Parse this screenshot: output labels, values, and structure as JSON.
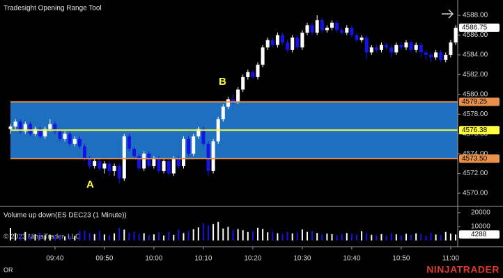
{
  "chart_data": {
    "type": "candlestick",
    "title": "Tradesight Opening Range Tool",
    "categories": [
      null,
      null,
      null,
      null,
      null,
      null,
      null,
      null,
      null,
      "09:40",
      null,
      null,
      null,
      null,
      null,
      null,
      null,
      null,
      null,
      "09:50",
      null,
      null,
      null,
      null,
      null,
      null,
      null,
      null,
      null,
      "10:00",
      null,
      null,
      null,
      null,
      null,
      null,
      null,
      null,
      null,
      "10:10",
      null,
      null,
      null,
      null,
      null,
      null,
      null,
      null,
      null,
      "10:20",
      null,
      null,
      null,
      null,
      null,
      null,
      null,
      null,
      null,
      "10:30",
      null,
      null,
      null,
      null,
      null,
      null,
      null,
      null,
      null,
      "10:40",
      null,
      null,
      null,
      null,
      null,
      null,
      null,
      null,
      null,
      "10:50",
      null,
      null,
      null,
      null,
      null,
      null,
      null,
      null,
      null,
      "11:00",
      null
    ],
    "ohlc": [
      [
        4576.5,
        4577,
        4576,
        4576.75
      ],
      [
        4576.75,
        4577.5,
        4576.5,
        4577.25
      ],
      [
        4577.25,
        4577.5,
        4576,
        4576.25
      ],
      [
        4576.25,
        4577.25,
        4576,
        4577
      ],
      [
        4577,
        4577.25,
        4575.75,
        4576
      ],
      [
        4576,
        4576.75,
        4575.75,
        4576.5
      ],
      [
        4576.5,
        4576.75,
        4575.5,
        4575.75
      ],
      [
        4575.75,
        4576.75,
        4575.5,
        4576.5
      ],
      [
        4576.5,
        4577.5,
        4576.25,
        4577
      ],
      [
        4577,
        4577.25,
        4576,
        4576.25
      ],
      [
        4576.25,
        4576.5,
        4575.25,
        4575.5
      ],
      [
        4575.5,
        4576.25,
        4575.25,
        4576
      ],
      [
        4576,
        4576.25,
        4574.75,
        4575
      ],
      [
        4575,
        4575.75,
        4574.75,
        4575.5
      ],
      [
        4575.5,
        4575.75,
        4574.5,
        4574.75
      ],
      [
        4574.75,
        4575,
        4573.25,
        4573.5
      ],
      [
        4573.5,
        4573.75,
        4572.5,
        4572.75
      ],
      [
        4572.75,
        4573.5,
        4572.5,
        4573.25
      ],
      [
        4573.25,
        4573.5,
        4572.25,
        4572.5
      ],
      [
        4572.5,
        4573.25,
        4572,
        4573
      ],
      [
        4573,
        4573.25,
        4571.75,
        4572.25
      ],
      [
        4572.25,
        4573,
        4571.75,
        4572.75
      ],
      [
        4572.75,
        4573,
        4571,
        4571.5
      ],
      [
        4571.5,
        4576,
        4571.25,
        4575.75
      ],
      [
        4575.75,
        4576,
        4574.25,
        4574.5
      ],
      [
        4574.5,
        4574.75,
        4573.5,
        4573.75
      ],
      [
        4573.75,
        4574,
        4572.25,
        4572.5
      ],
      [
        4572.5,
        4574.25,
        4572.25,
        4574
      ],
      [
        4574,
        4574.25,
        4572.5,
        4572.75
      ],
      [
        4572.75,
        4573.75,
        4572.5,
        4573.5
      ],
      [
        4573.5,
        4573.75,
        4572,
        4572.25
      ],
      [
        4572.25,
        4573.5,
        4572,
        4573.25
      ],
      [
        4573.25,
        4573.5,
        4571.75,
        4572
      ],
      [
        4572,
        4573.75,
        4571.75,
        4573.5
      ],
      [
        4573.5,
        4573.75,
        4572.5,
        4572.75
      ],
      [
        4572.75,
        4575.75,
        4572.5,
        4575.5
      ],
      [
        4575.5,
        4575.75,
        4573.75,
        4574
      ],
      [
        4574,
        4576,
        4573.75,
        4575.75
      ],
      [
        4575.75,
        4576.75,
        4575.5,
        4576.5
      ],
      [
        4576.5,
        4576.75,
        4574.75,
        4575
      ],
      [
        4575,
        4575.25,
        4571.75,
        4572.25
      ],
      [
        4572.25,
        4575.5,
        4572,
        4575.25
      ],
      [
        4575.25,
        4577.75,
        4575,
        4577.5
      ],
      [
        4577.5,
        4579,
        4577.25,
        4578.75
      ],
      [
        4578.75,
        4579.75,
        4578.5,
        4579.5
      ],
      [
        4579.5,
        4580,
        4579,
        4579.25
      ],
      [
        4579.25,
        4580.75,
        4579,
        4580.5
      ],
      [
        4580.5,
        4582,
        4580.25,
        4581.75
      ],
      [
        4581.75,
        4582.5,
        4581.5,
        4582.25
      ],
      [
        4582.25,
        4582.5,
        4581.5,
        4581.75
      ],
      [
        4581.75,
        4583.25,
        4581.5,
        4583
      ],
      [
        4583,
        4585,
        4582.75,
        4584.75
      ],
      [
        4584.75,
        4585.75,
        4584.5,
        4585.5
      ],
      [
        4585.5,
        4585.75,
        4584.75,
        4585
      ],
      [
        4585,
        4586.25,
        4584.75,
        4586
      ],
      [
        4586,
        4586.25,
        4585,
        4585.25
      ],
      [
        4585.25,
        4585.5,
        4584.25,
        4584.5
      ],
      [
        4584.5,
        4586,
        4584.25,
        4585.75
      ],
      [
        4585.75,
        4586,
        4584.5,
        4584.75
      ],
      [
        4584.75,
        4586.5,
        4584.5,
        4586.25
      ],
      [
        4586.25,
        4587.25,
        4586,
        4587
      ],
      [
        4587,
        4587.25,
        4586,
        4586.25
      ],
      [
        4586.25,
        4588,
        4586,
        4587.5
      ],
      [
        4587.5,
        4587.75,
        4586.25,
        4586.5
      ],
      [
        4586.5,
        4587,
        4586.25,
        4586.75
      ],
      [
        4586.75,
        4587.5,
        4586.5,
        4587.25
      ],
      [
        4587.25,
        4587.5,
        4586.25,
        4586.5
      ],
      [
        4586.5,
        4586.75,
        4586,
        4586.25
      ],
      [
        4586.25,
        4587,
        4586,
        4586.75
      ],
      [
        4586.75,
        4587,
        4585.75,
        4586
      ],
      [
        4586,
        4586.25,
        4585.25,
        4585.5
      ],
      [
        4585.5,
        4586,
        4585.25,
        4585.75
      ],
      [
        4585.75,
        4586,
        4583.5,
        4584.25
      ],
      [
        4584.25,
        4585,
        4584,
        4584.75
      ],
      [
        4584.75,
        4585,
        4584.25,
        4584.5
      ],
      [
        4584.5,
        4585.25,
        4584.25,
        4585
      ],
      [
        4585,
        4585.25,
        4584.5,
        4584.75
      ],
      [
        4584.75,
        4585,
        4583.75,
        4584.25
      ],
      [
        4584.25,
        4585.25,
        4584,
        4585
      ],
      [
        4585,
        4585.25,
        4584.5,
        4584.75
      ],
      [
        4584.75,
        4585.5,
        4584.5,
        4585.25
      ],
      [
        4585.25,
        4585.5,
        4584.25,
        4584.5
      ],
      [
        4584.5,
        4585.25,
        4584.25,
        4585
      ],
      [
        4585,
        4585.25,
        4583.75,
        4584.25
      ],
      [
        4584.25,
        4584.5,
        4583.5,
        4584
      ],
      [
        4584,
        4584.25,
        4583.25,
        4583.75
      ],
      [
        4583.75,
        4584.5,
        4583.5,
        4584.25
      ],
      [
        4584.25,
        4584.5,
        4583.25,
        4583.5
      ],
      [
        4583.5,
        4584.25,
        4583.25,
        4584
      ],
      [
        4584,
        4585.5,
        4583.75,
        4585.25
      ],
      [
        4585.25,
        4587,
        4585,
        4586.75
      ]
    ],
    "up_color": "#ffffff",
    "down_color": "#1414e6",
    "ylim": [
      4569.2,
      4589.2
    ],
    "yticks": [
      {
        "value": 4570,
        "label": "4570.00"
      },
      {
        "value": 4572,
        "label": "4572.00"
      },
      {
        "value": 4574,
        "label": "4574.00"
      },
      {
        "value": 4576,
        "label": "4576.00"
      },
      {
        "value": 4578,
        "label": "4578.00"
      },
      {
        "value": 4580,
        "label": "4580.00"
      },
      {
        "value": 4582,
        "label": "4582.00"
      },
      {
        "value": 4584,
        "label": "4584.00"
      },
      {
        "value": 4586,
        "label": "4586.00"
      },
      {
        "value": 4588,
        "label": "4588.00"
      }
    ],
    "opening_range": {
      "high": 4579.25,
      "mid": 4576.38,
      "low": {
        "value": 4573.5,
        "label": "4573.50"
      },
      "fill": "#1f6fc0",
      "edge_color": "#e8914a",
      "mid_color": "#ffff40"
    },
    "last_price": 4586.75,
    "annotations": [
      {
        "text": "A"
      },
      {
        "text": "B"
      }
    ],
    "volume": {
      "title": "Volume up down(ES DEC23 (1 Minute))",
      "values": [
        9000,
        5200,
        4800,
        6100,
        3900,
        4500,
        5300,
        3800,
        4200,
        3600,
        4100,
        2900,
        3500,
        3300,
        6800,
        7200,
        5400,
        4600,
        6900,
        4300,
        3800,
        5100,
        9200,
        7800,
        5600,
        6400,
        4700,
        5200,
        3900,
        4400,
        5800,
        3600,
        6200,
        4100,
        7700,
        5300,
        6900,
        8100,
        9400,
        12500,
        10800,
        11900,
        13400,
        8600,
        9800,
        7600,
        8200,
        7400,
        6100,
        6700,
        9100,
        8300,
        5900,
        6400,
        5200,
        4800,
        6300,
        5100,
        5700,
        7900,
        6200,
        6800,
        5400,
        4300,
        5000,
        4600,
        3900,
        4700,
        5300,
        4900,
        4200,
        6700,
        5400,
        4100,
        3800,
        4600,
        3500,
        5200,
        4400,
        3600,
        4800,
        4200,
        5100,
        4700,
        3400,
        5600,
        4300,
        3900,
        6100,
        4900,
        4288
      ],
      "ylim": [
        0,
        24000
      ],
      "yticks": [
        10000,
        20000
      ]
    },
    "copyright": "© 2023 NinjaTrader, LLC",
    "footer_label": "OR",
    "brand": "NINJATRADER"
  }
}
